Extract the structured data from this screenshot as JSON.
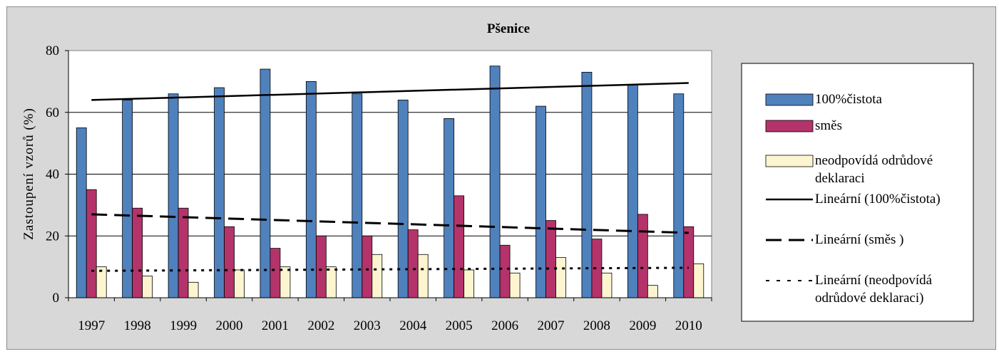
{
  "chart_data": {
    "type": "bar",
    "title": "Pšenice",
    "ylabel": "Zastoupení vzorů (%)",
    "xlabel": "",
    "ylim": [
      0,
      80
    ],
    "yticks": [
      "0",
      "20",
      "40",
      "60",
      "80"
    ],
    "categories": [
      "1997",
      "1998",
      "1999",
      "2000",
      "2001",
      "2002",
      "2003",
      "2004",
      "2005",
      "2006",
      "2007",
      "2008",
      "2009",
      "2010"
    ],
    "series": [
      {
        "name": "100%čistota",
        "color": "#4f81bd",
        "values": [
          55,
          64,
          66,
          68,
          74,
          70,
          66,
          64,
          58,
          75,
          62,
          73,
          69,
          66
        ]
      },
      {
        "name": "směs",
        "color": "#b5336b",
        "values": [
          35,
          29,
          29,
          23,
          16,
          20,
          20,
          22,
          33,
          17,
          25,
          19,
          27,
          23
        ]
      },
      {
        "name": "neodpovídá odrůdové deklaraci",
        "legend_lines": [
          "neodpovídá odrůdové",
          "deklaraci"
        ],
        "color": "#fdf5cf",
        "values": [
          10,
          7,
          5,
          9,
          10,
          10,
          14,
          14,
          9,
          8,
          13,
          8,
          4,
          11
        ]
      }
    ],
    "trendlines": [
      {
        "name": "Lineární (100%čistota)",
        "legend_lines": [
          "Lineární (100%čistota)"
        ],
        "style": "solid",
        "start": 64,
        "end": 69.5
      },
      {
        "name": "Lineární (směs )",
        "legend_lines": [
          "Lineární (směs )"
        ],
        "style": "dashed",
        "start": 27,
        "end": 21
      },
      {
        "name": "Lineární (neodpovídá odrůdové deklaraci)",
        "legend_lines": [
          "Lineární (neodpovídá",
          "odrůdové deklaraci)"
        ],
        "style": "dotted",
        "start": 8.7,
        "end": 9.7
      }
    ],
    "grid": true,
    "legend_position": "right"
  }
}
